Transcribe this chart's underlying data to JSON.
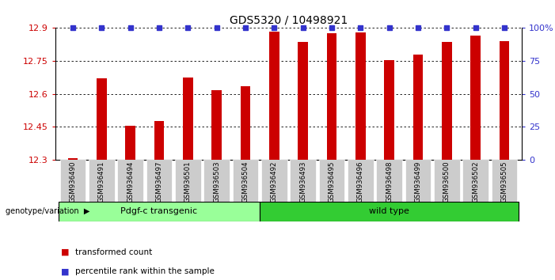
{
  "title": "GDS5320 / 10498921",
  "samples": [
    "GSM936490",
    "GSM936491",
    "GSM936494",
    "GSM936497",
    "GSM936501",
    "GSM936503",
    "GSM936504",
    "GSM936492",
    "GSM936493",
    "GSM936495",
    "GSM936496",
    "GSM936498",
    "GSM936499",
    "GSM936500",
    "GSM936502",
    "GSM936505"
  ],
  "red_values": [
    12.305,
    12.67,
    12.455,
    12.475,
    12.675,
    12.615,
    12.635,
    12.885,
    12.835,
    12.875,
    12.88,
    12.755,
    12.78,
    12.835,
    12.865,
    12.84
  ],
  "blue_values": [
    100,
    100,
    100,
    100,
    100,
    100,
    100,
    100,
    100,
    100,
    100,
    100,
    100,
    100,
    100,
    100
  ],
  "ymin": 12.3,
  "ymax": 12.9,
  "yticks": [
    12.3,
    12.45,
    12.6,
    12.75,
    12.9
  ],
  "y2ticks": [
    0,
    25,
    50,
    75,
    100
  ],
  "y2labels": [
    "0",
    "25",
    "50",
    "75",
    "100%"
  ],
  "group1_label": "Pdgf-c transgenic",
  "group2_label": "wild type",
  "group1_count": 7,
  "group2_count": 9,
  "genotype_label": "genotype/variation",
  "legend_red": "transformed count",
  "legend_blue": "percentile rank within the sample",
  "bar_color": "#cc0000",
  "blue_color": "#3333cc",
  "group1_color": "#99ff99",
  "group2_color": "#33cc33",
  "bg_color": "#ffffff",
  "title_color": "#000000",
  "axis_label_color": "#cc0000",
  "y2_label_color": "#3333cc",
  "tick_label_bgcolor": "#cccccc"
}
